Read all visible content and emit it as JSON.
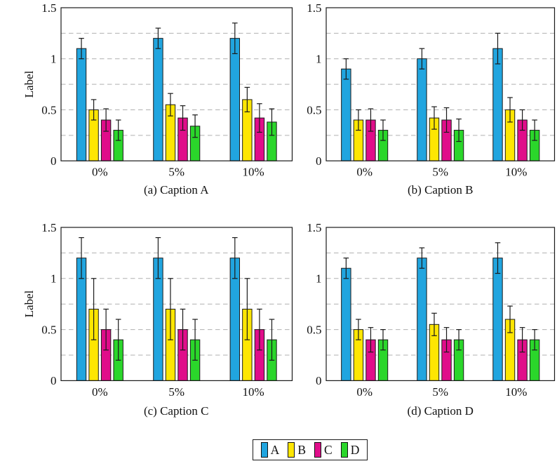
{
  "figure": {
    "background": "#ffffff",
    "axis_color": "#1a1a1a",
    "grid_color": "#b0b0b0",
    "text_color": "#111111"
  },
  "legend": {
    "position": "below-figure-centered",
    "entries": [
      {
        "label": "A",
        "color": "#21A5DF"
      },
      {
        "label": "B",
        "color": "#FEE602"
      },
      {
        "label": "C",
        "color": "#E00D8A"
      },
      {
        "label": "D",
        "color": "#2BD62B"
      }
    ]
  },
  "chart_data": [
    {
      "type": "bar",
      "title": "(a) Caption A",
      "ylabel": "Label",
      "xlabel": "",
      "categories": [
        "0%",
        "5%",
        "10%"
      ],
      "ylim": [
        0,
        1.5
      ],
      "yticks": [
        0,
        0.5,
        1,
        1.5
      ],
      "ytick_labels": [
        "0",
        "0.5",
        "1",
        "1.5"
      ],
      "gridlines_y": [
        0.25,
        0.5,
        0.75,
        1.0,
        1.25
      ],
      "grid_style": "dashed",
      "series": [
        {
          "name": "A",
          "color": "#21A5DF",
          "values": [
            1.1,
            1.2,
            1.2
          ],
          "errors": [
            0.1,
            0.1,
            0.15
          ]
        },
        {
          "name": "B",
          "color": "#FEE602",
          "values": [
            0.5,
            0.55,
            0.6
          ],
          "errors": [
            0.1,
            0.11,
            0.12
          ]
        },
        {
          "name": "C",
          "color": "#E00D8A",
          "values": [
            0.4,
            0.42,
            0.42
          ],
          "errors": [
            0.11,
            0.12,
            0.14
          ]
        },
        {
          "name": "D",
          "color": "#2BD62B",
          "values": [
            0.3,
            0.34,
            0.38
          ],
          "errors": [
            0.1,
            0.11,
            0.13
          ]
        }
      ]
    },
    {
      "type": "bar",
      "title": "(b) Caption B",
      "ylabel": "",
      "xlabel": "",
      "categories": [
        "0%",
        "5%",
        "10%"
      ],
      "ylim": [
        0,
        1.5
      ],
      "yticks": [
        0,
        0.5,
        1,
        1.5
      ],
      "ytick_labels": [
        "0",
        "0.5",
        "1",
        "1.5"
      ],
      "gridlines_y": [
        0.25,
        0.5,
        0.75,
        1.0,
        1.25
      ],
      "grid_style": "dashed",
      "series": [
        {
          "name": "A",
          "color": "#21A5DF",
          "values": [
            0.9,
            1.0,
            1.1
          ],
          "errors": [
            0.1,
            0.1,
            0.15
          ]
        },
        {
          "name": "B",
          "color": "#FEE602",
          "values": [
            0.4,
            0.42,
            0.5
          ],
          "errors": [
            0.1,
            0.11,
            0.12
          ]
        },
        {
          "name": "C",
          "color": "#E00D8A",
          "values": [
            0.4,
            0.4,
            0.4
          ],
          "errors": [
            0.11,
            0.12,
            0.1
          ]
        },
        {
          "name": "D",
          "color": "#2BD62B",
          "values": [
            0.3,
            0.3,
            0.3
          ],
          "errors": [
            0.1,
            0.11,
            0.1
          ]
        }
      ]
    },
    {
      "type": "bar",
      "title": "(c) Caption C",
      "ylabel": "Label",
      "xlabel": "",
      "categories": [
        "0%",
        "5%",
        "10%"
      ],
      "ylim": [
        0,
        1.5
      ],
      "yticks": [
        0,
        0.5,
        1,
        1.5
      ],
      "ytick_labels": [
        "0",
        "0.5",
        "1",
        "1.5"
      ],
      "gridlines_y": [
        0.25,
        0.5,
        0.75,
        1.0,
        1.25
      ],
      "grid_style": "dashed",
      "series": [
        {
          "name": "A",
          "color": "#21A5DF",
          "values": [
            1.2,
            1.2,
            1.2
          ],
          "errors": [
            0.2,
            0.2,
            0.2
          ]
        },
        {
          "name": "B",
          "color": "#FEE602",
          "values": [
            0.7,
            0.7,
            0.7
          ],
          "errors": [
            0.3,
            0.3,
            0.3
          ]
        },
        {
          "name": "C",
          "color": "#E00D8A",
          "values": [
            0.5,
            0.5,
            0.5
          ],
          "errors": [
            0.2,
            0.2,
            0.2
          ]
        },
        {
          "name": "D",
          "color": "#2BD62B",
          "values": [
            0.4,
            0.4,
            0.4
          ],
          "errors": [
            0.2,
            0.2,
            0.2
          ]
        }
      ]
    },
    {
      "type": "bar",
      "title": "(d) Caption D",
      "ylabel": "",
      "xlabel": "",
      "categories": [
        "0%",
        "5%",
        "10%"
      ],
      "ylim": [
        0,
        1.5
      ],
      "yticks": [
        0,
        0.5,
        1,
        1.5
      ],
      "ytick_labels": [
        "0",
        "0.5",
        "1",
        "1.5"
      ],
      "gridlines_y": [
        0.25,
        0.5,
        0.75,
        1.0,
        1.25
      ],
      "grid_style": "dashed",
      "series": [
        {
          "name": "A",
          "color": "#21A5DF",
          "values": [
            1.1,
            1.2,
            1.2
          ],
          "errors": [
            0.1,
            0.1,
            0.15
          ]
        },
        {
          "name": "B",
          "color": "#FEE602",
          "values": [
            0.5,
            0.55,
            0.6
          ],
          "errors": [
            0.1,
            0.11,
            0.13
          ]
        },
        {
          "name": "C",
          "color": "#E00D8A",
          "values": [
            0.4,
            0.4,
            0.4
          ],
          "errors": [
            0.12,
            0.12,
            0.12
          ]
        },
        {
          "name": "D",
          "color": "#2BD62B",
          "values": [
            0.4,
            0.4,
            0.4
          ],
          "errors": [
            0.1,
            0.1,
            0.1
          ]
        }
      ]
    }
  ]
}
